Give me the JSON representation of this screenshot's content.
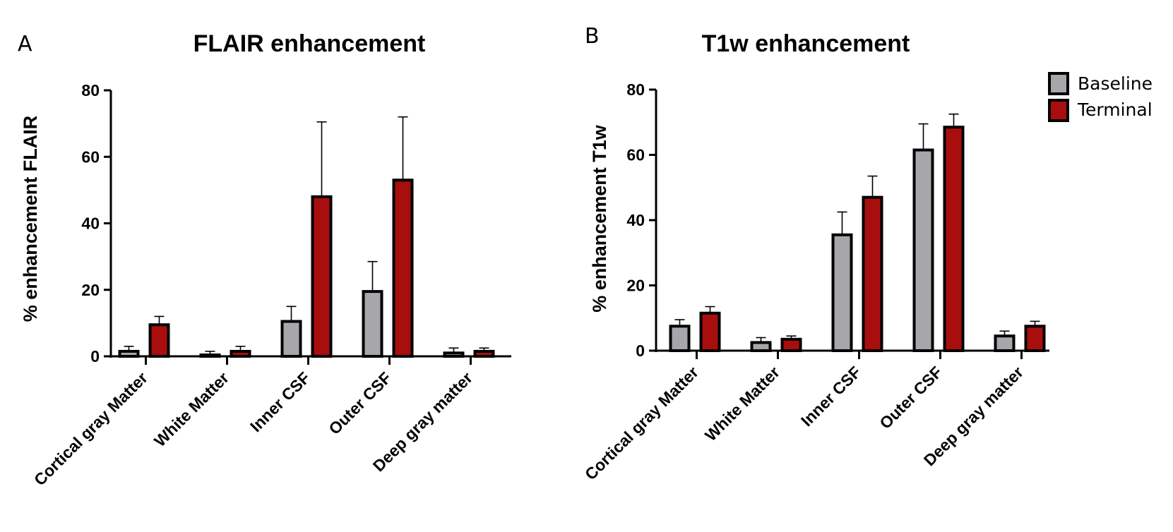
{
  "colors": {
    "baseline": "#a6a6ab",
    "terminal": "#a80e0e",
    "stroke": "#000000"
  },
  "legend": {
    "items": [
      {
        "name": "Baseline",
        "color": "#a6a6ab"
      },
      {
        "name": "Terminal",
        "color": "#a80e0e"
      }
    ]
  },
  "chart_data": [
    {
      "panel": "A",
      "type": "bar",
      "title": "FLAIR enhancement",
      "ylabel": "% enhancement FLAIR",
      "xlabel": "",
      "ylim": [
        0,
        80
      ],
      "yticks": [
        0,
        20,
        40,
        60,
        80
      ],
      "categories": [
        "Cortical gray Matter",
        "White Matter",
        "Inner CSF",
        "Outer CSF",
        "Deep gray matter"
      ],
      "series": [
        {
          "name": "Baseline",
          "values": [
            1.5,
            0.0,
            10.5,
            19.5,
            1.0
          ],
          "errors": [
            1.5,
            1.5,
            4.5,
            9.0,
            1.5
          ]
        },
        {
          "name": "Terminal",
          "values": [
            9.5,
            1.5,
            48.0,
            53.0,
            1.5
          ],
          "errors": [
            2.5,
            1.5,
            22.5,
            19.0,
            1.0
          ]
        }
      ]
    },
    {
      "panel": "B",
      "type": "bar",
      "title": "T1w enhancement",
      "ylabel": "% enhancement T1w",
      "xlabel": "",
      "ylim": [
        0,
        80
      ],
      "yticks": [
        0,
        20,
        40,
        60,
        80
      ],
      "categories": [
        "Cortical gray Matter",
        "White Matter",
        "Inner CSF",
        "Outer CSF",
        "Deep gray matter"
      ],
      "series": [
        {
          "name": "Baseline",
          "values": [
            7.5,
            2.5,
            35.5,
            61.5,
            4.5
          ],
          "errors": [
            2.0,
            1.5,
            7.0,
            8.0,
            1.5
          ]
        },
        {
          "name": "Terminal",
          "values": [
            11.5,
            3.5,
            47.0,
            68.5,
            7.5
          ],
          "errors": [
            2.0,
            1.0,
            6.5,
            4.0,
            1.5
          ]
        }
      ]
    }
  ]
}
